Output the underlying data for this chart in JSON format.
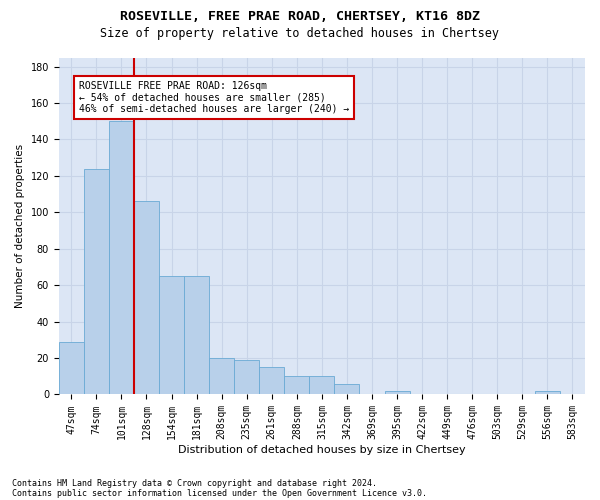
{
  "title": "ROSEVILLE, FREE PRAE ROAD, CHERTSEY, KT16 8DZ",
  "subtitle": "Size of property relative to detached houses in Chertsey",
  "xlabel": "Distribution of detached houses by size in Chertsey",
  "ylabel": "Number of detached properties",
  "footer1": "Contains HM Land Registry data © Crown copyright and database right 2024.",
  "footer2": "Contains public sector information licensed under the Open Government Licence v3.0.",
  "bar_labels": [
    "47sqm",
    "74sqm",
    "101sqm",
    "128sqm",
    "154sqm",
    "181sqm",
    "208sqm",
    "235sqm",
    "261sqm",
    "288sqm",
    "315sqm",
    "342sqm",
    "369sqm",
    "395sqm",
    "422sqm",
    "449sqm",
    "476sqm",
    "503sqm",
    "529sqm",
    "556sqm",
    "583sqm"
  ],
  "bar_values": [
    29,
    124,
    150,
    106,
    65,
    65,
    20,
    19,
    15,
    10,
    10,
    6,
    0,
    2,
    0,
    0,
    0,
    0,
    0,
    2,
    0
  ],
  "bar_color": "#b8d0ea",
  "bar_edge_color": "#6aaad4",
  "grid_color": "#c8d4e8",
  "background_color": "#dce6f5",
  "vline_color": "#cc0000",
  "annotation_text": "ROSEVILLE FREE PRAE ROAD: 126sqm\n← 54% of detached houses are smaller (285)\n46% of semi-detached houses are larger (240) →",
  "annotation_box_color": "#ffffff",
  "annotation_box_edge": "#cc0000",
  "ylim": [
    0,
    185
  ],
  "yticks": [
    0,
    20,
    40,
    60,
    80,
    100,
    120,
    140,
    160,
    180
  ],
  "title_fontsize": 9.5,
  "subtitle_fontsize": 8.5,
  "xlabel_fontsize": 8,
  "ylabel_fontsize": 7.5,
  "tick_fontsize": 7,
  "annotation_fontsize": 7,
  "footer_fontsize": 6
}
